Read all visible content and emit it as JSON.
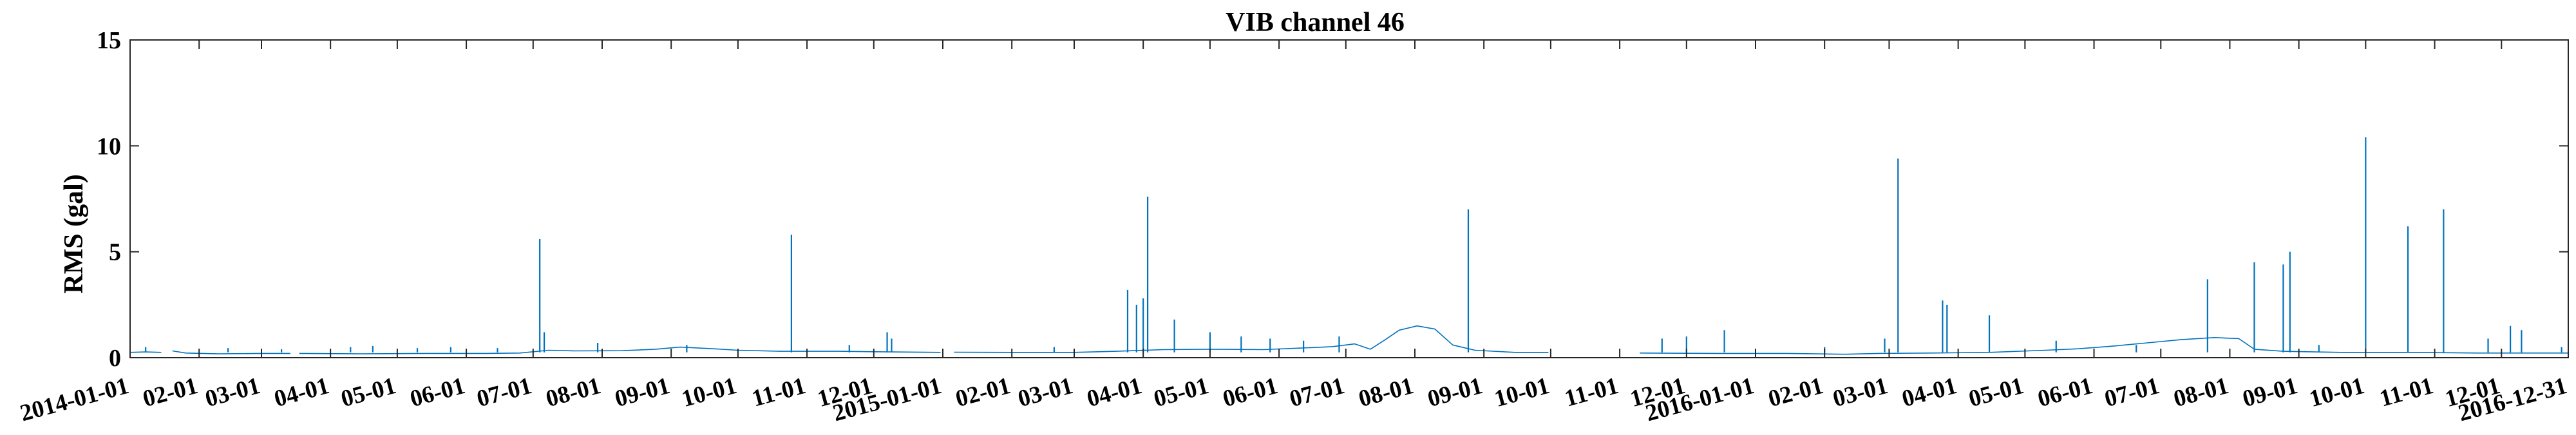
{
  "chart_data": {
    "type": "line",
    "title": "VIB channel 46",
    "xlabel": "",
    "ylabel": "RMS (gal)",
    "ylim": [
      0,
      15
    ],
    "yticks": [
      0,
      5,
      10,
      15
    ],
    "xlim": [
      "2014-01-01",
      "2016-12-31"
    ],
    "grid": false,
    "color": "#0072BD",
    "xtick_labels": [
      {
        "date": "2014-01-01",
        "label": "2014-01-01"
      },
      {
        "date": "2014-02-01",
        "label": "02-01"
      },
      {
        "date": "2014-03-01",
        "label": "03-01"
      },
      {
        "date": "2014-04-01",
        "label": "04-01"
      },
      {
        "date": "2014-05-01",
        "label": "05-01"
      },
      {
        "date": "2014-06-01",
        "label": "06-01"
      },
      {
        "date": "2014-07-01",
        "label": "07-01"
      },
      {
        "date": "2014-08-01",
        "label": "08-01"
      },
      {
        "date": "2014-09-01",
        "label": "09-01"
      },
      {
        "date": "2014-10-01",
        "label": "10-01"
      },
      {
        "date": "2014-11-01",
        "label": "11-01"
      },
      {
        "date": "2014-12-01",
        "label": "12-01"
      },
      {
        "date": "2015-01-01",
        "label": "2015-01-01"
      },
      {
        "date": "2015-02-01",
        "label": "02-01"
      },
      {
        "date": "2015-03-01",
        "label": "03-01"
      },
      {
        "date": "2015-04-01",
        "label": "04-01"
      },
      {
        "date": "2015-05-01",
        "label": "05-01"
      },
      {
        "date": "2015-06-01",
        "label": "06-01"
      },
      {
        "date": "2015-07-01",
        "label": "07-01"
      },
      {
        "date": "2015-08-01",
        "label": "08-01"
      },
      {
        "date": "2015-09-01",
        "label": "09-01"
      },
      {
        "date": "2015-10-01",
        "label": "10-01"
      },
      {
        "date": "2015-11-01",
        "label": "11-01"
      },
      {
        "date": "2015-12-01",
        "label": "12-01"
      },
      {
        "date": "2016-01-01",
        "label": "2016-01-01"
      },
      {
        "date": "2016-02-01",
        "label": "02-01"
      },
      {
        "date": "2016-03-01",
        "label": "03-01"
      },
      {
        "date": "2016-04-01",
        "label": "04-01"
      },
      {
        "date": "2016-05-01",
        "label": "05-01"
      },
      {
        "date": "2016-06-01",
        "label": "06-01"
      },
      {
        "date": "2016-07-01",
        "label": "07-01"
      },
      {
        "date": "2016-08-01",
        "label": "08-01"
      },
      {
        "date": "2016-09-01",
        "label": "09-01"
      },
      {
        "date": "2016-10-01",
        "label": "10-01"
      },
      {
        "date": "2016-11-01",
        "label": "11-01"
      },
      {
        "date": "2016-12-01",
        "label": "12-01"
      },
      {
        "date": "2016-12-31",
        "label": "2016-12-31"
      }
    ],
    "segments": [
      {
        "start": "2014-01-01",
        "end": "2014-01-15",
        "points": [
          [
            "2014-01-01",
            0.25
          ],
          [
            "2014-01-08",
            0.27
          ],
          [
            "2014-01-15",
            0.25
          ]
        ]
      },
      {
        "start": "2014-01-20",
        "end": "2014-03-14",
        "points": [
          [
            "2014-01-20",
            0.32
          ],
          [
            "2014-01-26",
            0.22
          ],
          [
            "2014-02-10",
            0.18
          ],
          [
            "2014-02-28",
            0.2
          ],
          [
            "2014-03-14",
            0.2
          ]
        ]
      },
      {
        "start": "2014-03-18",
        "end": "2014-12-31",
        "points": [
          [
            "2014-03-18",
            0.2
          ],
          [
            "2014-04-15",
            0.18
          ],
          [
            "2014-05-15",
            0.2
          ],
          [
            "2014-06-10",
            0.2
          ],
          [
            "2014-06-25",
            0.22
          ],
          [
            "2014-07-08",
            0.35
          ],
          [
            "2014-07-20",
            0.32
          ],
          [
            "2014-08-10",
            0.33
          ],
          [
            "2014-08-25",
            0.4
          ],
          [
            "2014-09-05",
            0.5
          ],
          [
            "2014-09-20",
            0.42
          ],
          [
            "2014-10-01",
            0.35
          ],
          [
            "2014-10-20",
            0.3
          ],
          [
            "2014-11-15",
            0.3
          ],
          [
            "2014-12-01",
            0.28
          ],
          [
            "2014-12-31",
            0.25
          ]
        ]
      },
      {
        "start": "2015-01-06",
        "end": "2015-09-30",
        "points": [
          [
            "2015-01-06",
            0.26
          ],
          [
            "2015-02-01",
            0.25
          ],
          [
            "2015-03-01",
            0.25
          ],
          [
            "2015-03-20",
            0.3
          ],
          [
            "2015-04-10",
            0.38
          ],
          [
            "2015-05-01",
            0.4
          ],
          [
            "2015-05-25",
            0.38
          ],
          [
            "2015-06-10",
            0.45
          ],
          [
            "2015-06-25",
            0.52
          ],
          [
            "2015-07-05",
            0.65
          ],
          [
            "2015-07-12",
            0.4
          ],
          [
            "2015-07-18",
            0.8
          ],
          [
            "2015-07-25",
            1.3
          ],
          [
            "2015-08-02",
            1.5
          ],
          [
            "2015-08-10",
            1.35
          ],
          [
            "2015-08-18",
            0.6
          ],
          [
            "2015-08-28",
            0.35
          ],
          [
            "2015-09-15",
            0.25
          ],
          [
            "2015-09-30",
            0.25
          ]
        ]
      },
      {
        "start": "2015-11-10",
        "end": "2016-12-31",
        "points": [
          [
            "2015-11-10",
            0.22
          ],
          [
            "2015-12-15",
            0.2
          ],
          [
            "2016-01-15",
            0.2
          ],
          [
            "2016-02-10",
            0.16
          ],
          [
            "2016-02-25",
            0.2
          ],
          [
            "2016-03-20",
            0.22
          ],
          [
            "2016-04-15",
            0.25
          ],
          [
            "2016-05-10",
            0.35
          ],
          [
            "2016-05-25",
            0.42
          ],
          [
            "2016-06-10",
            0.55
          ],
          [
            "2016-06-25",
            0.7
          ],
          [
            "2016-07-10",
            0.85
          ],
          [
            "2016-07-25",
            0.95
          ],
          [
            "2016-08-05",
            0.9
          ],
          [
            "2016-08-12",
            0.4
          ],
          [
            "2016-08-25",
            0.3
          ],
          [
            "2016-09-20",
            0.25
          ],
          [
            "2016-10-20",
            0.25
          ],
          [
            "2016-11-20",
            0.22
          ],
          [
            "2016-12-31",
            0.22
          ]
        ]
      }
    ],
    "spikes": [
      [
        "2014-01-08",
        0.5
      ],
      [
        "2014-02-14",
        0.45
      ],
      [
        "2014-03-10",
        0.4
      ],
      [
        "2014-04-10",
        0.5
      ],
      [
        "2014-04-20",
        0.55
      ],
      [
        "2014-05-10",
        0.45
      ],
      [
        "2014-05-25",
        0.5
      ],
      [
        "2014-06-15",
        0.45
      ],
      [
        "2014-07-04",
        5.6
      ],
      [
        "2014-07-06",
        1.2
      ],
      [
        "2014-07-30",
        0.7
      ],
      [
        "2014-09-08",
        0.6
      ],
      [
        "2014-10-25",
        5.8
      ],
      [
        "2014-11-20",
        0.6
      ],
      [
        "2014-12-07",
        1.2
      ],
      [
        "2014-12-09",
        0.9
      ],
      [
        "2015-02-20",
        0.5
      ],
      [
        "2015-03-25",
        3.2
      ],
      [
        "2015-03-29",
        2.5
      ],
      [
        "2015-04-01",
        2.8
      ],
      [
        "2015-04-03",
        7.6
      ],
      [
        "2015-04-15",
        1.8
      ],
      [
        "2015-05-01",
        1.2
      ],
      [
        "2015-05-15",
        1.0
      ],
      [
        "2015-05-28",
        0.9
      ],
      [
        "2015-06-12",
        0.8
      ],
      [
        "2015-06-28",
        1.0
      ],
      [
        "2015-08-25",
        7.0
      ],
      [
        "2015-11-20",
        0.9
      ],
      [
        "2015-12-01",
        1.0
      ],
      [
        "2015-12-18",
        1.3
      ],
      [
        "2016-02-01",
        0.5
      ],
      [
        "2016-02-28",
        0.9
      ],
      [
        "2016-03-05",
        9.4
      ],
      [
        "2016-03-25",
        2.7
      ],
      [
        "2016-03-27",
        2.5
      ],
      [
        "2016-04-15",
        2.0
      ],
      [
        "2016-05-15",
        0.8
      ],
      [
        "2016-06-20",
        0.6
      ],
      [
        "2016-07-22",
        3.7
      ],
      [
        "2016-08-12",
        4.5
      ],
      [
        "2016-08-25",
        4.4
      ],
      [
        "2016-08-28",
        5.0
      ],
      [
        "2016-09-10",
        0.6
      ],
      [
        "2016-10-01",
        10.4
      ],
      [
        "2016-10-20",
        6.2
      ],
      [
        "2016-11-05",
        7.0
      ],
      [
        "2016-11-25",
        0.9
      ],
      [
        "2016-12-05",
        1.5
      ],
      [
        "2016-12-10",
        1.3
      ],
      [
        "2016-12-28",
        0.5
      ]
    ]
  }
}
